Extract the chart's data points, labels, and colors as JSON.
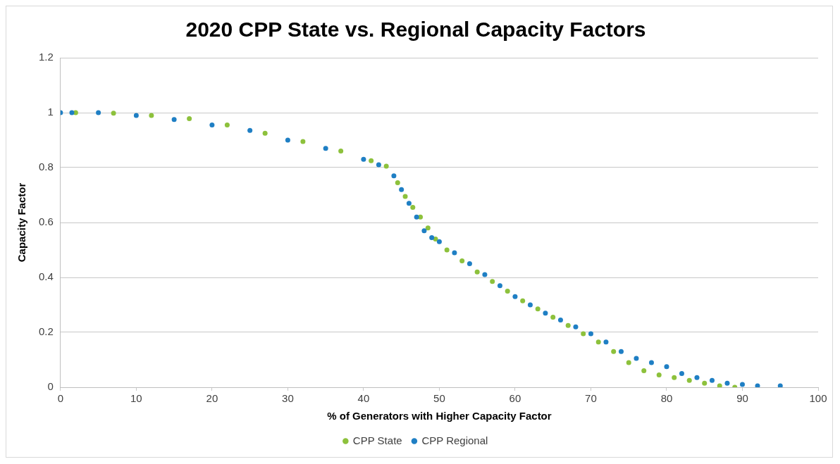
{
  "chart_data": {
    "type": "scatter",
    "title": "2020 CPP State vs. Regional Capacity Factors",
    "xlabel": "% of Generators with Higher Capacity Factor",
    "ylabel": "Capacity Factor",
    "xlim": [
      0,
      100
    ],
    "xticks": [
      0,
      10,
      20,
      30,
      40,
      50,
      60,
      70,
      80,
      90,
      100
    ],
    "ylim": [
      0,
      1.2
    ],
    "yticks": [
      0,
      0.2,
      0.4,
      0.6,
      0.8,
      1,
      1.2
    ],
    "grid": "y",
    "legend": "bottom",
    "marker": "circle",
    "series": [
      {
        "name": "CPP State",
        "color": "#8dc13c",
        "x": [
          2,
          7,
          12,
          17,
          22,
          27,
          32,
          37,
          41,
          43,
          44.5,
          45.5,
          46.5,
          47.5,
          48.5,
          49.5,
          51,
          53,
          55,
          57,
          59,
          61,
          63,
          65,
          67,
          69,
          71,
          73,
          75,
          77,
          79,
          81,
          83,
          85,
          87,
          89
        ],
        "values": [
          1.0,
          0.998,
          0.99,
          0.978,
          0.955,
          0.925,
          0.895,
          0.86,
          0.825,
          0.805,
          0.745,
          0.695,
          0.655,
          0.62,
          0.58,
          0.54,
          0.5,
          0.46,
          0.42,
          0.385,
          0.35,
          0.315,
          0.285,
          0.255,
          0.225,
          0.195,
          0.165,
          0.13,
          0.09,
          0.06,
          0.045,
          0.035,
          0.025,
          0.015,
          0.005,
          0
        ]
      },
      {
        "name": "CPP Regional",
        "color": "#1f7fc4",
        "x": [
          0,
          1.5,
          5,
          10,
          15,
          20,
          25,
          30,
          35,
          40,
          42,
          44,
          45,
          46,
          47,
          48,
          49,
          50,
          52,
          54,
          56,
          58,
          60,
          62,
          64,
          66,
          68,
          70,
          72,
          74,
          76,
          78,
          80,
          82,
          84,
          86,
          88,
          90,
          92,
          95
        ],
        "values": [
          1.0,
          1.0,
          1.0,
          0.99,
          0.975,
          0.955,
          0.935,
          0.9,
          0.87,
          0.83,
          0.81,
          0.77,
          0.72,
          0.67,
          0.62,
          0.57,
          0.545,
          0.53,
          0.49,
          0.45,
          0.41,
          0.37,
          0.33,
          0.3,
          0.27,
          0.245,
          0.22,
          0.195,
          0.165,
          0.13,
          0.105,
          0.09,
          0.075,
          0.05,
          0.035,
          0.025,
          0.015,
          0.01,
          0.005,
          0.005
        ]
      }
    ]
  }
}
